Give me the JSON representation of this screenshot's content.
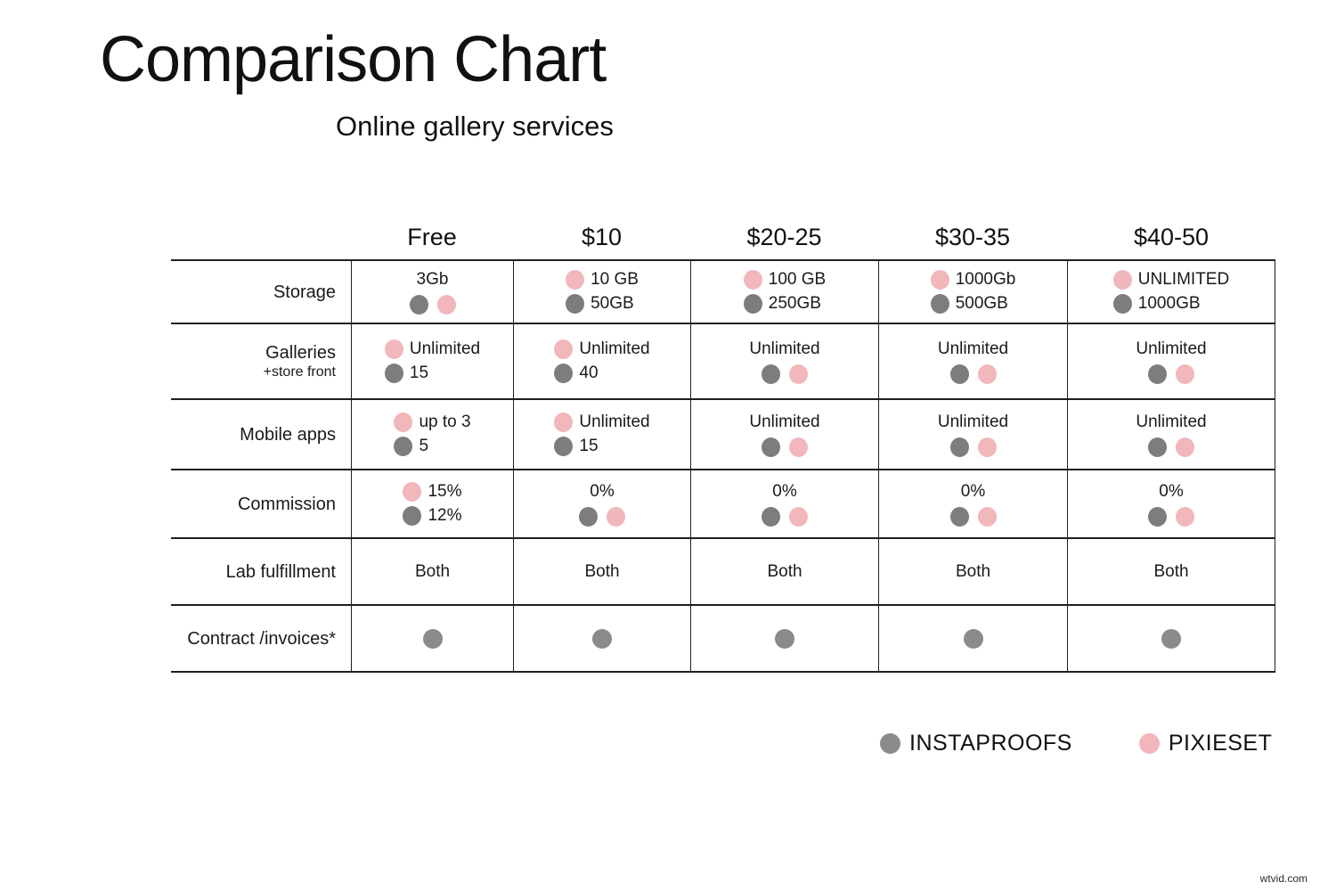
{
  "title": "Comparison Chart",
  "subtitle": "Online gallery services",
  "watermark": "wtvid.com",
  "colors": {
    "instaproofs": "#7d7d7d",
    "pixieset": "#f1b7ba",
    "contract_dot": "#8b8b8b",
    "border": "#1f1f1f"
  },
  "legend": [
    {
      "label": "INSTAPROOFS",
      "color": "#8b8b8b"
    },
    {
      "label": "PIXIESET",
      "color": "#f1b7ba"
    }
  ],
  "table": {
    "col_headers": [
      "Free",
      "$10",
      "$20-25",
      "$30-35",
      "$40-50"
    ],
    "rows": [
      {
        "label": "Storage",
        "sublabel": "",
        "cells": [
          {
            "type": "text-dots",
            "text": "3Gb",
            "dots": [
              "instaproofs",
              "pixieset"
            ]
          },
          {
            "type": "dot-rows",
            "rows": [
              [
                "pixieset",
                "10 GB"
              ],
              [
                "instaproofs",
                "50GB"
              ]
            ]
          },
          {
            "type": "dot-rows",
            "rows": [
              [
                "pixieset",
                "100 GB"
              ],
              [
                "instaproofs",
                "250GB"
              ]
            ]
          },
          {
            "type": "dot-rows",
            "rows": [
              [
                "pixieset",
                "1000Gb"
              ],
              [
                "instaproofs",
                "500GB"
              ]
            ]
          },
          {
            "type": "dot-rows",
            "rows": [
              [
                "pixieset",
                "UNLIMITED"
              ],
              [
                "instaproofs",
                "1000GB"
              ]
            ]
          }
        ]
      },
      {
        "label": "Galleries",
        "sublabel": "+store front",
        "cells": [
          {
            "type": "dot-rows",
            "rows": [
              [
                "pixieset",
                "Unlimited"
              ],
              [
                "instaproofs",
                "15"
              ]
            ]
          },
          {
            "type": "dot-rows",
            "rows": [
              [
                "pixieset",
                "Unlimited"
              ],
              [
                "instaproofs",
                "40"
              ]
            ]
          },
          {
            "type": "text-dots",
            "text": "Unlimited",
            "dots": [
              "instaproofs",
              "pixieset"
            ]
          },
          {
            "type": "text-dots",
            "text": "Unlimited",
            "dots": [
              "instaproofs",
              "pixieset"
            ]
          },
          {
            "type": "text-dots",
            "text": "Unlimited",
            "dots": [
              "instaproofs",
              "pixieset"
            ]
          }
        ]
      },
      {
        "label": "Mobile apps",
        "sublabel": "",
        "cells": [
          {
            "type": "dot-rows",
            "rows": [
              [
                "pixieset",
                "up to 3"
              ],
              [
                "instaproofs",
                "5"
              ]
            ]
          },
          {
            "type": "dot-rows",
            "rows": [
              [
                "pixieset",
                "Unlimited"
              ],
              [
                "instaproofs",
                "15"
              ]
            ]
          },
          {
            "type": "text-dots",
            "text": "Unlimited",
            "dots": [
              "instaproofs",
              "pixieset"
            ]
          },
          {
            "type": "text-dots",
            "text": "Unlimited",
            "dots": [
              "instaproofs",
              "pixieset"
            ]
          },
          {
            "type": "text-dots",
            "text": "Unlimited",
            "dots": [
              "instaproofs",
              "pixieset"
            ]
          }
        ]
      },
      {
        "label": "Commission",
        "sublabel": "",
        "cells": [
          {
            "type": "dot-rows",
            "rows": [
              [
                "pixieset",
                "15%"
              ],
              [
                "instaproofs",
                "12%"
              ]
            ]
          },
          {
            "type": "text-dots",
            "text": "0%",
            "dots": [
              "instaproofs",
              "pixieset"
            ]
          },
          {
            "type": "text-dots",
            "text": "0%",
            "dots": [
              "instaproofs",
              "pixieset"
            ]
          },
          {
            "type": "text-dots",
            "text": "0%",
            "dots": [
              "instaproofs",
              "pixieset"
            ]
          },
          {
            "type": "text-dots",
            "text": "0%",
            "dots": [
              "instaproofs",
              "pixieset"
            ]
          }
        ]
      },
      {
        "label": "Lab fulfillment",
        "sublabel": "",
        "cells": [
          {
            "type": "text",
            "text": "Both"
          },
          {
            "type": "text",
            "text": "Both"
          },
          {
            "type": "text",
            "text": "Both"
          },
          {
            "type": "text",
            "text": "Both"
          },
          {
            "type": "text",
            "text": "Both"
          }
        ]
      },
      {
        "label": "Contract /invoices*",
        "sublabel": "",
        "cells": [
          {
            "type": "dot",
            "dot": "contract_dot"
          },
          {
            "type": "dot",
            "dot": "contract_dot"
          },
          {
            "type": "dot",
            "dot": "contract_dot"
          },
          {
            "type": "dot",
            "dot": "contract_dot"
          },
          {
            "type": "dot",
            "dot": "contract_dot"
          }
        ]
      }
    ]
  },
  "chart_data": {
    "type": "table",
    "title": "Comparison Chart",
    "subtitle": "Online gallery services",
    "columns": [
      "Free",
      "$10",
      "$20-25",
      "$30-35",
      "$40-50"
    ],
    "series_legend": [
      "INSTAPROOFS",
      "PIXIESET"
    ],
    "rows": [
      {
        "feature": "Storage",
        "PIXIESET": [
          "3Gb",
          "10 GB",
          "100 GB",
          "1000Gb",
          "UNLIMITED"
        ],
        "INSTAPROOFS": [
          "3Gb",
          "50GB",
          "250GB",
          "500GB",
          "1000GB"
        ]
      },
      {
        "feature": "Galleries +store front",
        "PIXIESET": [
          "Unlimited",
          "Unlimited",
          "Unlimited",
          "Unlimited",
          "Unlimited"
        ],
        "INSTAPROOFS": [
          "15",
          "40",
          "Unlimited",
          "Unlimited",
          "Unlimited"
        ]
      },
      {
        "feature": "Mobile apps",
        "PIXIESET": [
          "up to 3",
          "Unlimited",
          "Unlimited",
          "Unlimited",
          "Unlimited"
        ],
        "INSTAPROOFS": [
          "5",
          "15",
          "Unlimited",
          "Unlimited",
          "Unlimited"
        ]
      },
      {
        "feature": "Commission",
        "PIXIESET": [
          "15%",
          "0%",
          "0%",
          "0%",
          "0%"
        ],
        "INSTAPROOFS": [
          "12%",
          "0%",
          "0%",
          "0%",
          "0%"
        ]
      },
      {
        "feature": "Lab fulfillment",
        "PIXIESET": [
          "Both",
          "Both",
          "Both",
          "Both",
          "Both"
        ],
        "INSTAPROOFS": [
          "Both",
          "Both",
          "Both",
          "Both",
          "Both"
        ]
      },
      {
        "feature": "Contract /invoices*",
        "PIXIESET": [
          "",
          "",
          "",
          "",
          ""
        ],
        "INSTAPROOFS": [
          "yes",
          "yes",
          "yes",
          "yes",
          "yes"
        ]
      }
    ]
  }
}
